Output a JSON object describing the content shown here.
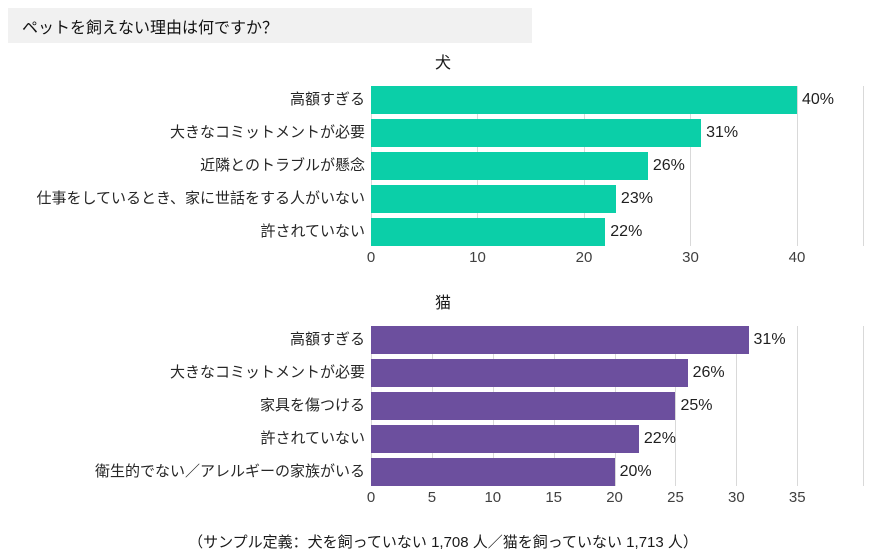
{
  "header": {
    "title": "ペットを飼えない理由は何ですか？"
  },
  "footer": {
    "note": "（サンプル定義：犬を飼っていない 1,708 人／猫を飼っていない 1,713 人）"
  },
  "colors": {
    "dog_bar": "#0bcfa8",
    "cat_bar": "#6c4f9e",
    "gridline": "#d9d9d9",
    "title_chip_bg": "#f1f1f1",
    "tick_text": "#404040"
  },
  "chart_data": [
    {
      "type": "bar",
      "orientation": "horizontal",
      "name": "dog-bar-chart",
      "title": "犬",
      "categories": [
        "高額すぎる",
        "大きなコミットメントが必要",
        "近隣とのトラブルが懸念",
        "仕事をしているとき、家に世話をする人がいない",
        "許されていない"
      ],
      "values": [
        40,
        31,
        26,
        23,
        22
      ],
      "value_labels": [
        "40%",
        "31%",
        "26%",
        "23%",
        "22%"
      ],
      "ticks": [
        0,
        10,
        20,
        30,
        40
      ],
      "xlim": [
        0,
        46.2
      ],
      "bar_color": "#0bcfa8",
      "grid": true,
      "legend": false,
      "xlabel": "",
      "ylabel": ""
    },
    {
      "type": "bar",
      "orientation": "horizontal",
      "name": "cat-bar-chart",
      "title": "猫",
      "categories": [
        "高額すぎる",
        "大きなコミットメントが必要",
        "家具を傷つける",
        "許されていない",
        "衛生的でない／アレルギーの家族がいる"
      ],
      "values": [
        31,
        26,
        25,
        22,
        20
      ],
      "value_labels": [
        "31%",
        "26%",
        "25%",
        "22%",
        "20%"
      ],
      "ticks": [
        0,
        5,
        10,
        15,
        20,
        25,
        30,
        35
      ],
      "xlim": [
        0,
        40.4
      ],
      "bar_color": "#6c4f9e",
      "grid": true,
      "legend": false,
      "xlabel": "",
      "ylabel": ""
    }
  ]
}
